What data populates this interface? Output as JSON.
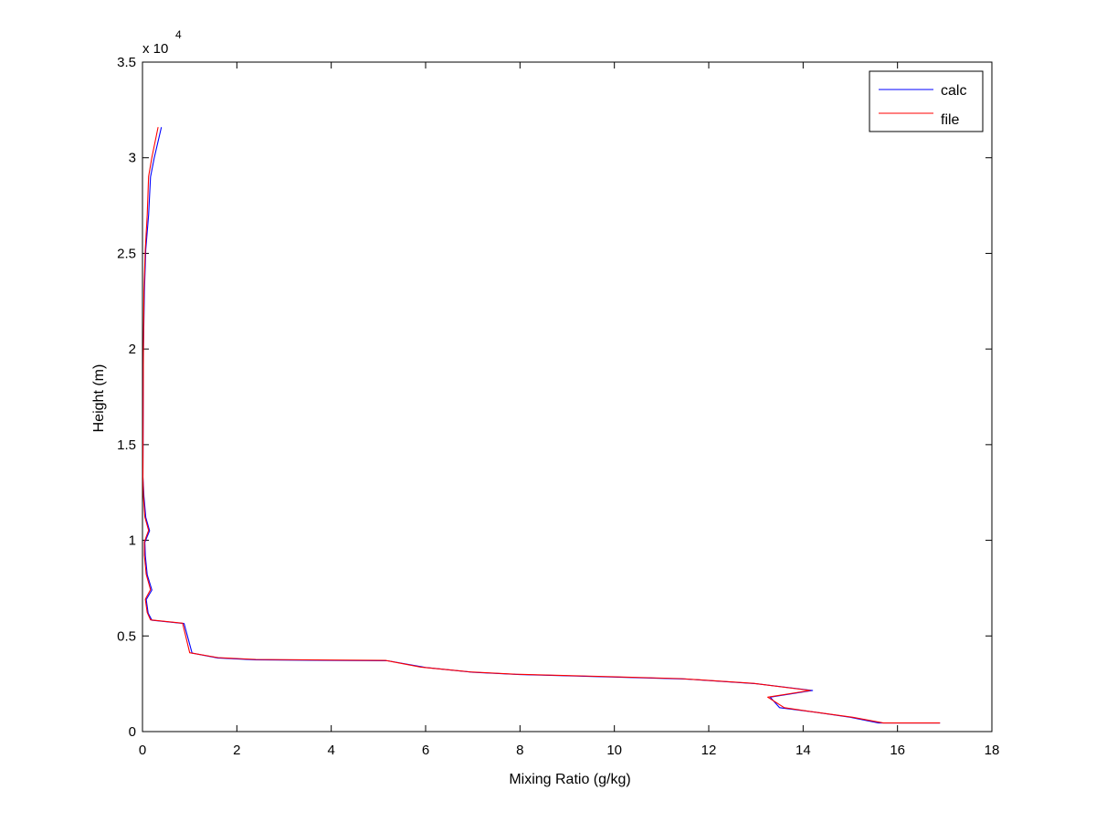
{
  "chart_data": {
    "type": "line",
    "title": "",
    "xlabel": "Mixing Ratio (g/kg)",
    "ylabel": "Height (m)",
    "xlim": [
      0,
      18
    ],
    "ylim": [
      0,
      35000
    ],
    "y_exponent_label": "x 10",
    "y_exponent_power": "4",
    "x_ticks": [
      0,
      2,
      4,
      6,
      8,
      10,
      12,
      14,
      16,
      18
    ],
    "x_tick_labels": [
      "0",
      "2",
      "4",
      "6",
      "8",
      "10",
      "12",
      "14",
      "16",
      "18"
    ],
    "y_ticks": [
      0,
      5000,
      10000,
      15000,
      20000,
      25000,
      30000,
      35000
    ],
    "y_tick_labels": [
      "0",
      "0.5",
      "1",
      "1.5",
      "2",
      "2.5",
      "3",
      "3.5"
    ],
    "grid": false,
    "legend_position": "top-right",
    "series": [
      {
        "name": "calc",
        "color": "#0000ff",
        "points": [
          [
            16.9,
            450
          ],
          [
            15.6,
            450
          ],
          [
            15.0,
            750
          ],
          [
            14.3,
            1000
          ],
          [
            13.5,
            1250
          ],
          [
            13.3,
            1800
          ],
          [
            14.2,
            2150
          ],
          [
            13.0,
            2500
          ],
          [
            11.5,
            2750
          ],
          [
            10.0,
            2850
          ],
          [
            8.0,
            2980
          ],
          [
            7.0,
            3100
          ],
          [
            6.0,
            3350
          ],
          [
            5.2,
            3700
          ],
          [
            4.0,
            3720
          ],
          [
            2.4,
            3750
          ],
          [
            1.6,
            3850
          ],
          [
            1.05,
            4100
          ],
          [
            0.88,
            5650
          ],
          [
            0.2,
            5820
          ],
          [
            0.12,
            6200
          ],
          [
            0.08,
            6900
          ],
          [
            0.2,
            7400
          ],
          [
            0.1,
            8200
          ],
          [
            0.06,
            9200
          ],
          [
            0.05,
            9900
          ],
          [
            0.15,
            10500
          ],
          [
            0.07,
            11200
          ],
          [
            0.03,
            12300
          ],
          [
            0.01,
            13300
          ],
          [
            0.02,
            19800
          ],
          [
            0.04,
            23000
          ],
          [
            0.07,
            25200
          ],
          [
            0.13,
            27000
          ],
          [
            0.17,
            29000
          ],
          [
            0.25,
            30000
          ],
          [
            0.4,
            31600
          ]
        ]
      },
      {
        "name": "file",
        "color": "#ff0000",
        "points": [
          [
            16.9,
            450
          ],
          [
            15.7,
            450
          ],
          [
            15.05,
            750
          ],
          [
            14.3,
            1000
          ],
          [
            13.6,
            1250
          ],
          [
            13.25,
            1800
          ],
          [
            14.15,
            2150
          ],
          [
            12.95,
            2520
          ],
          [
            11.4,
            2770
          ],
          [
            9.95,
            2870
          ],
          [
            7.9,
            3000
          ],
          [
            6.95,
            3120
          ],
          [
            5.9,
            3370
          ],
          [
            5.15,
            3720
          ],
          [
            4.0,
            3740
          ],
          [
            2.4,
            3770
          ],
          [
            1.6,
            3870
          ],
          [
            1.0,
            4120
          ],
          [
            0.85,
            5670
          ],
          [
            0.17,
            5840
          ],
          [
            0.1,
            6220
          ],
          [
            0.06,
            6920
          ],
          [
            0.17,
            7420
          ],
          [
            0.08,
            8220
          ],
          [
            0.04,
            9220
          ],
          [
            0.04,
            9920
          ],
          [
            0.13,
            10520
          ],
          [
            0.05,
            11220
          ],
          [
            0.02,
            12320
          ],
          [
            0.01,
            13320
          ],
          [
            0.02,
            19820
          ],
          [
            0.03,
            23020
          ],
          [
            0.06,
            25220
          ],
          [
            0.1,
            27020
          ],
          [
            0.13,
            29020
          ],
          [
            0.2,
            30020
          ],
          [
            0.33,
            31600
          ]
        ]
      }
    ]
  }
}
